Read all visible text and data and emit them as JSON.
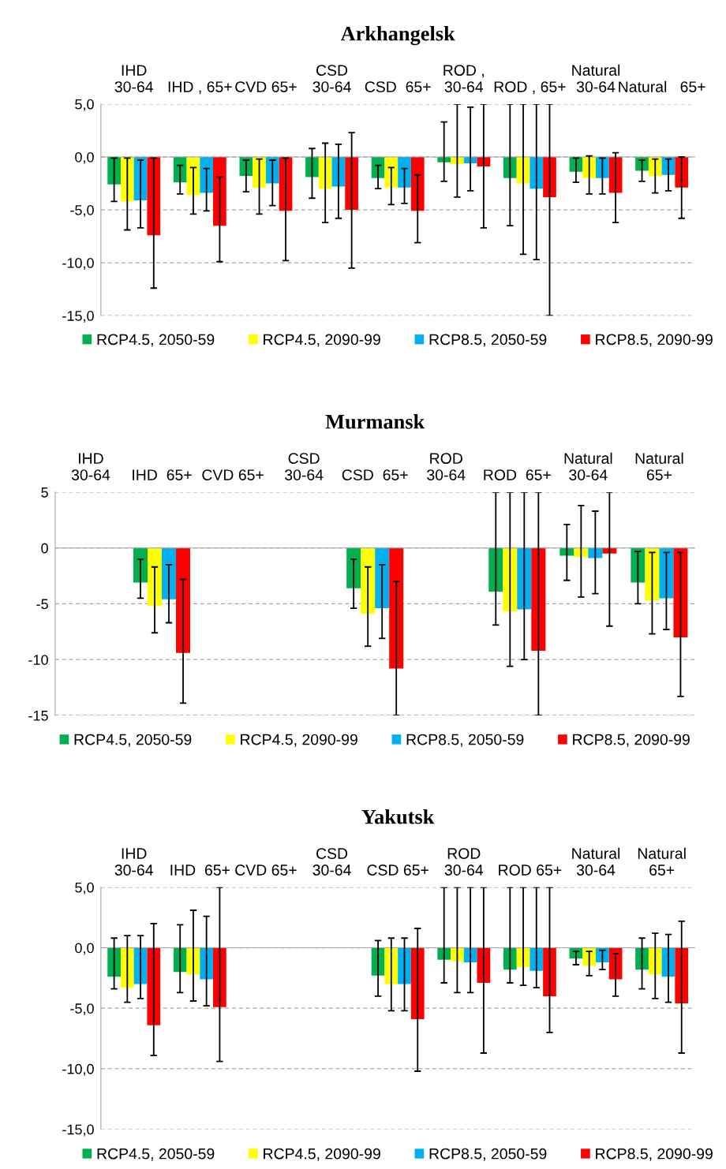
{
  "chart_data": [
    {
      "type": "bar",
      "title": "Arkhangelsk",
      "categories": [
        "IHD\n30-64",
        "IHD , 65+",
        "CVD 65+",
        "CSD\n30-64",
        "CSD  65+",
        "ROD ,\n30-64",
        "ROD , 65+",
        "Natural\n30-64",
        "Natural   65+"
      ],
      "ylim": [
        -15,
        5
      ],
      "yticks": [
        {
          "value": -15,
          "label": "-15,0"
        },
        {
          "value": -10,
          "label": "-10,0"
        },
        {
          "value": -5,
          "label": "-5,0"
        },
        {
          "value": 0,
          "label": "0,0"
        },
        {
          "value": 5,
          "label": "5,0"
        }
      ],
      "grid": "y",
      "legend": "bottom",
      "series": [
        {
          "name": "RCP4.5, 2050-59",
          "color": "#00b050",
          "values": [
            -2.6,
            -2.4,
            -1.8,
            -1.9,
            -2.0,
            -0.5,
            -2.0,
            -1.4,
            -1.3
          ],
          "errors": [
            [
              -4.2,
              -0.1
            ],
            [
              -3.5,
              -0.8
            ],
            [
              -3.3,
              -0.3
            ],
            [
              -3.9,
              0.8
            ],
            [
              -3.0,
              -0.8
            ],
            [
              -2.3,
              3.3
            ],
            [
              -6.5,
              5
            ],
            [
              -2.4,
              -0.1
            ],
            [
              -2.3,
              -0.3
            ]
          ]
        },
        {
          "name": "RCP4.5, 2090-99",
          "color": "#ffff00",
          "values": [
            -4.2,
            -3.6,
            -2.9,
            -3.0,
            -2.9,
            -0.7,
            -2.5,
            -2.0,
            -1.8
          ],
          "errors": [
            [
              -6.9,
              -0.1
            ],
            [
              -5.4,
              -1.0
            ],
            [
              -5.4,
              -0.2
            ],
            [
              -6.2,
              1.3
            ],
            [
              -4.5,
              -1.0
            ],
            [
              -3.8,
              5
            ],
            [
              -9.2,
              5
            ],
            [
              -3.5,
              0.1
            ],
            [
              -3.4,
              -0.2
            ]
          ]
        },
        {
          "name": "RCP8.5, 2050-59",
          "color": "#00b0f0",
          "values": [
            -4.1,
            -3.4,
            -2.5,
            -2.8,
            -2.9,
            -0.6,
            -3.0,
            -2.0,
            -1.7
          ],
          "errors": [
            [
              -6.7,
              -0.3
            ],
            [
              -5.1,
              -1.1
            ],
            [
              -4.6,
              -0.3
            ],
            [
              -5.8,
              1.2
            ],
            [
              -4.4,
              -1.1
            ],
            [
              -3.2,
              4.7
            ],
            [
              -9.7,
              5
            ],
            [
              -3.5,
              -0.1
            ],
            [
              -3.2,
              -0.2
            ]
          ]
        },
        {
          "name": "RCP8.5, 2090-99",
          "color": "#ff0000",
          "values": [
            -7.4,
            -6.5,
            -5.1,
            -5.0,
            -5.1,
            -0.9,
            -3.8,
            -3.4,
            -2.9
          ],
          "errors": [
            [
              -12.4,
              -0.1
            ],
            [
              -9.9,
              -1.9
            ],
            [
              -9.8,
              -0.1
            ],
            [
              -10.5,
              2.3
            ],
            [
              -8.1,
              -1.7
            ],
            [
              -6.7,
              5
            ],
            [
              -15,
              5
            ],
            [
              -6.2,
              0.4
            ],
            [
              -5.8,
              0.0
            ]
          ]
        }
      ]
    },
    {
      "type": "bar",
      "title": "Murmansk",
      "categories": [
        "IHD\n30-64",
        "IHD  65+",
        "CVD 65+",
        "CSD\n30-64",
        "CSD  65+",
        "ROD\n30-64",
        "ROD  65+",
        "Natural\n30-64",
        "Natural\n65+"
      ],
      "ylim": [
        -15,
        5
      ],
      "yticks": [
        -15,
        -10,
        -5,
        0,
        5
      ],
      "grid": "y",
      "legend": "bottom",
      "series": [
        {
          "name": "RCP4.5, 2050-59",
          "color": "#00b050",
          "values": [
            null,
            -3.1,
            null,
            null,
            -3.6,
            null,
            -3.9,
            -0.7,
            -3.1
          ],
          "errors": [
            null,
            [
              -4.5,
              -1.0
            ],
            null,
            null,
            [
              -5.4,
              -1.0
            ],
            null,
            [
              -6.9,
              5
            ],
            [
              -2.9,
              2.1
            ],
            [
              -5.0,
              -0.3
            ]
          ]
        },
        {
          "name": "RCP4.5, 2090-99",
          "color": "#ffff00",
          "values": [
            null,
            -5.2,
            null,
            null,
            -5.9,
            null,
            -5.7,
            -0.8,
            -4.7
          ],
          "errors": [
            null,
            [
              -7.6,
              -1.7
            ],
            null,
            null,
            [
              -8.8,
              -1.7
            ],
            null,
            [
              -10.6,
              5
            ],
            [
              -4.4,
              3.8
            ],
            [
              -7.7,
              -0.4
            ]
          ]
        },
        {
          "name": "RCP8.5, 2050-59",
          "color": "#00b0f0",
          "values": [
            null,
            -4.6,
            null,
            null,
            -5.4,
            null,
            -5.5,
            -0.9,
            -4.5
          ],
          "errors": [
            null,
            [
              -6.7,
              -1.5
            ],
            null,
            null,
            [
              -8.1,
              -1.5
            ],
            null,
            [
              -10.0,
              5
            ],
            [
              -4.1,
              3.3
            ],
            [
              -7.3,
              -0.4
            ]
          ]
        },
        {
          "name": "RCP8.5, 2090-99",
          "color": "#ff0000",
          "values": [
            null,
            -9.4,
            null,
            null,
            -10.8,
            null,
            -9.2,
            -0.5,
            -8.0
          ],
          "errors": [
            null,
            [
              -13.9,
              -2.8
            ],
            null,
            null,
            [
              -15,
              -3.0
            ],
            null,
            [
              -15,
              5
            ],
            [
              -7.0,
              5
            ],
            [
              -13.3,
              -0.4
            ]
          ]
        }
      ]
    },
    {
      "type": "bar",
      "title": "Yakutsk",
      "categories": [
        "IHD\n30-64",
        "IHD  65+",
        "CVD 65+",
        "CSD\n30-64",
        "CSD 65+",
        "ROD\n30-64",
        "ROD 65+",
        "Natural\n30-64",
        "Natural\n65+"
      ],
      "ylim": [
        -15,
        5
      ],
      "yticks": [
        {
          "value": -15,
          "label": "-15,0"
        },
        {
          "value": -10,
          "label": "-10,0"
        },
        {
          "value": -5,
          "label": "-5,0"
        },
        {
          "value": 0,
          "label": "0,0"
        },
        {
          "value": 5,
          "label": "5,0"
        }
      ],
      "grid": "y",
      "legend": "bottom",
      "series": [
        {
          "name": "RCP4.5, 2050-59",
          "color": "#00b050",
          "values": [
            -2.4,
            -2.0,
            null,
            null,
            -2.3,
            -1.0,
            -1.8,
            -0.9,
            -1.8
          ],
          "errors": [
            [
              -3.4,
              0.8
            ],
            [
              -3.7,
              1.9
            ],
            null,
            null,
            [
              -4.0,
              0.6
            ],
            [
              -2.9,
              5
            ],
            [
              -2.9,
              5
            ],
            [
              -1.4,
              -0.3
            ],
            [
              -3.4,
              0.8
            ]
          ]
        },
        {
          "name": "RCP4.5, 2090-99",
          "color": "#ffff00",
          "values": [
            -3.3,
            -2.2,
            null,
            null,
            -3.0,
            -1.1,
            -1.6,
            -1.5,
            -2.2
          ],
          "errors": [
            [
              -4.5,
              1.0
            ],
            [
              -4.4,
              3.1
            ],
            null,
            null,
            [
              -5.2,
              0.8
            ],
            [
              -3.7,
              5
            ],
            [
              -3.1,
              5
            ],
            [
              -2.3,
              -0.3
            ],
            [
              -4.2,
              1.2
            ]
          ]
        },
        {
          "name": "RCP8.5, 2050-59",
          "color": "#00b0f0",
          "values": [
            -3.0,
            -2.6,
            null,
            null,
            -3.0,
            -1.2,
            -1.9,
            -1.2,
            -2.4
          ],
          "errors": [
            [
              -4.2,
              1.0
            ],
            [
              -4.8,
              2.6
            ],
            null,
            null,
            [
              -5.2,
              0.8
            ],
            [
              -3.7,
              5
            ],
            [
              -3.3,
              5
            ],
            [
              -1.8,
              -0.2
            ],
            [
              -4.5,
              1.1
            ]
          ]
        },
        {
          "name": "RCP8.5, 2090-99",
          "color": "#ff0000",
          "values": [
            -6.4,
            -4.9,
            null,
            null,
            -5.9,
            -2.9,
            -4.0,
            -2.6,
            -4.6
          ],
          "errors": [
            [
              -8.9,
              2.0
            ],
            [
              -9.4,
              5
            ],
            null,
            null,
            [
              -10.2,
              1.6
            ],
            [
              -8.7,
              5
            ],
            [
              -7.0,
              5
            ],
            [
              -4.0,
              -0.5
            ],
            [
              -8.7,
              2.2
            ]
          ]
        }
      ]
    }
  ]
}
